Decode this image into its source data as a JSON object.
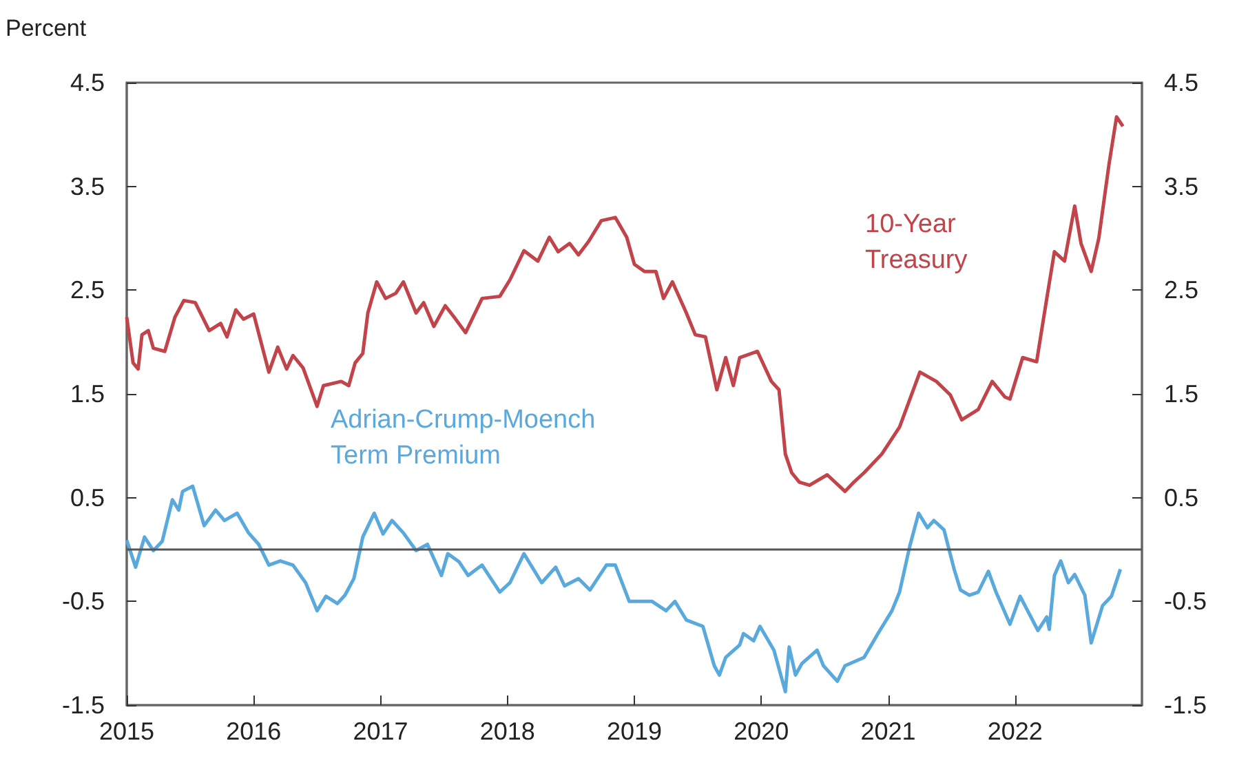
{
  "chart_data": {
    "type": "line",
    "ylabel": "Percent",
    "xlim": [
      2015,
      2023
    ],
    "xticks": [
      2015,
      2016,
      2017,
      2018,
      2019,
      2020,
      2021,
      2022
    ],
    "ylim": [
      -1.5,
      4.5
    ],
    "yticks": [
      -1.5,
      -0.5,
      0.5,
      1.5,
      2.5,
      3.5,
      4.5
    ],
    "y2lim": [
      -1.5,
      4.5
    ],
    "y2ticks": [
      -1.5,
      -0.5,
      0.5,
      1.5,
      2.5,
      3.5,
      4.5
    ],
    "grid": false,
    "marker": "none",
    "line_style": "solid",
    "legend": false,
    "ref_lines": [
      {
        "axis": "y",
        "value": 0,
        "color": "#555555"
      }
    ],
    "series": [
      {
        "name": "10-Year Treasury",
        "color": "#c0444a",
        "x": [
          2015.0,
          2015.05,
          2015.09,
          2015.12,
          2015.17,
          2015.21,
          2015.3,
          2015.38,
          2015.45,
          2015.54,
          2015.65,
          2015.74,
          2015.79,
          2015.86,
          2015.92,
          2016.0,
          2016.12,
          2016.19,
          2016.26,
          2016.31,
          2016.39,
          2016.5,
          2016.55,
          2016.69,
          2016.75,
          2016.8,
          2016.86,
          2016.9,
          2016.97,
          2017.04,
          2017.12,
          2017.18,
          2017.28,
          2017.34,
          2017.42,
          2017.51,
          2017.58,
          2017.67,
          2017.8,
          2017.94,
          2018.02,
          2018.13,
          2018.24,
          2018.33,
          2018.4,
          2018.49,
          2018.56,
          2018.64,
          2018.74,
          2018.85,
          2018.94,
          2019.0,
          2019.08,
          2019.17,
          2019.23,
          2019.3,
          2019.41,
          2019.48,
          2019.56,
          2019.65,
          2019.72,
          2019.78,
          2019.83,
          2019.97,
          2020.08,
          2020.14,
          2020.19,
          2020.24,
          2020.3,
          2020.38,
          2020.52,
          2020.66,
          2020.73,
          2020.81,
          2020.95,
          2021.09,
          2021.25,
          2021.38,
          2021.49,
          2021.58,
          2021.71,
          2021.82,
          2021.92,
          2021.96,
          2022.06,
          2022.17,
          2022.25,
          2022.31,
          2022.39,
          2022.47,
          2022.52,
          2022.6,
          2022.66,
          2022.74,
          2022.8,
          2022.85
        ],
        "values": [
          2.24,
          1.8,
          1.74,
          2.07,
          2.11,
          1.94,
          1.91,
          2.24,
          2.4,
          2.38,
          2.11,
          2.18,
          2.05,
          2.31,
          2.22,
          2.27,
          1.71,
          1.95,
          1.74,
          1.87,
          1.75,
          1.38,
          1.58,
          1.62,
          1.58,
          1.8,
          1.89,
          2.28,
          2.58,
          2.42,
          2.47,
          2.58,
          2.28,
          2.38,
          2.15,
          2.35,
          2.24,
          2.09,
          2.42,
          2.44,
          2.6,
          2.88,
          2.78,
          3.01,
          2.87,
          2.95,
          2.84,
          2.97,
          3.17,
          3.2,
          3.01,
          2.75,
          2.68,
          2.68,
          2.42,
          2.58,
          2.28,
          2.07,
          2.05,
          1.54,
          1.85,
          1.58,
          1.85,
          1.91,
          1.62,
          1.54,
          0.92,
          0.74,
          0.65,
          0.62,
          0.72,
          0.56,
          0.65,
          0.74,
          0.92,
          1.18,
          1.71,
          1.62,
          1.49,
          1.25,
          1.35,
          1.62,
          1.47,
          1.45,
          1.85,
          1.81,
          2.42,
          2.87,
          2.78,
          3.31,
          2.95,
          2.68,
          3.0,
          3.71,
          4.17,
          4.08
        ]
      },
      {
        "name": "Adrian-Crump-Moench Term Premium",
        "color": "#5aa9dc",
        "x": [
          2015.0,
          2015.07,
          2015.14,
          2015.21,
          2015.28,
          2015.36,
          2015.41,
          2015.44,
          2015.52,
          2015.61,
          2015.7,
          2015.77,
          2015.87,
          2015.96,
          2016.04,
          2016.12,
          2016.21,
          2016.31,
          2016.41,
          2016.5,
          2016.57,
          2016.66,
          2016.72,
          2016.79,
          2016.86,
          2016.95,
          2017.02,
          2017.09,
          2017.18,
          2017.28,
          2017.37,
          2017.48,
          2017.53,
          2017.62,
          2017.69,
          2017.8,
          2017.94,
          2018.02,
          2018.13,
          2018.27,
          2018.38,
          2018.45,
          2018.56,
          2018.65,
          2018.78,
          2018.85,
          2018.96,
          2019.14,
          2019.25,
          2019.32,
          2019.41,
          2019.54,
          2019.63,
          2019.67,
          2019.72,
          2019.83,
          2019.86,
          2019.94,
          2019.99,
          2020.1,
          2020.19,
          2020.22,
          2020.27,
          2020.32,
          2020.44,
          2020.49,
          2020.6,
          2020.66,
          2020.81,
          2020.92,
          2021.03,
          2021.09,
          2021.17,
          2021.24,
          2021.31,
          2021.36,
          2021.44,
          2021.52,
          2021.57,
          2021.64,
          2021.71,
          2021.79,
          2021.85,
          2021.96,
          2022.04,
          2022.18,
          2022.25,
          2022.27,
          2022.31,
          2022.36,
          2022.42,
          2022.47,
          2022.55,
          2022.6,
          2022.69,
          2022.76,
          2022.83
        ],
        "values": [
          0.09,
          -0.17,
          0.12,
          -0.01,
          0.08,
          0.48,
          0.38,
          0.56,
          0.61,
          0.23,
          0.38,
          0.28,
          0.35,
          0.16,
          0.05,
          -0.15,
          -0.11,
          -0.15,
          -0.32,
          -0.59,
          -0.45,
          -0.52,
          -0.44,
          -0.28,
          0.12,
          0.35,
          0.15,
          0.28,
          0.16,
          -0.01,
          0.05,
          -0.25,
          -0.04,
          -0.12,
          -0.25,
          -0.15,
          -0.41,
          -0.32,
          -0.04,
          -0.32,
          -0.17,
          -0.35,
          -0.28,
          -0.39,
          -0.15,
          -0.15,
          -0.5,
          -0.5,
          -0.59,
          -0.5,
          -0.68,
          -0.74,
          -1.12,
          -1.21,
          -1.04,
          -0.92,
          -0.81,
          -0.88,
          -0.74,
          -0.97,
          -1.37,
          -0.94,
          -1.21,
          -1.1,
          -0.97,
          -1.12,
          -1.27,
          -1.12,
          -1.04,
          -0.81,
          -0.59,
          -0.41,
          0.03,
          0.35,
          0.21,
          0.28,
          0.19,
          -0.19,
          -0.39,
          -0.44,
          -0.41,
          -0.21,
          -0.41,
          -0.72,
          -0.45,
          -0.78,
          -0.65,
          -0.77,
          -0.25,
          -0.11,
          -0.32,
          -0.24,
          -0.44,
          -0.9,
          -0.54,
          -0.45,
          -0.19
        ]
      }
    ]
  }
}
